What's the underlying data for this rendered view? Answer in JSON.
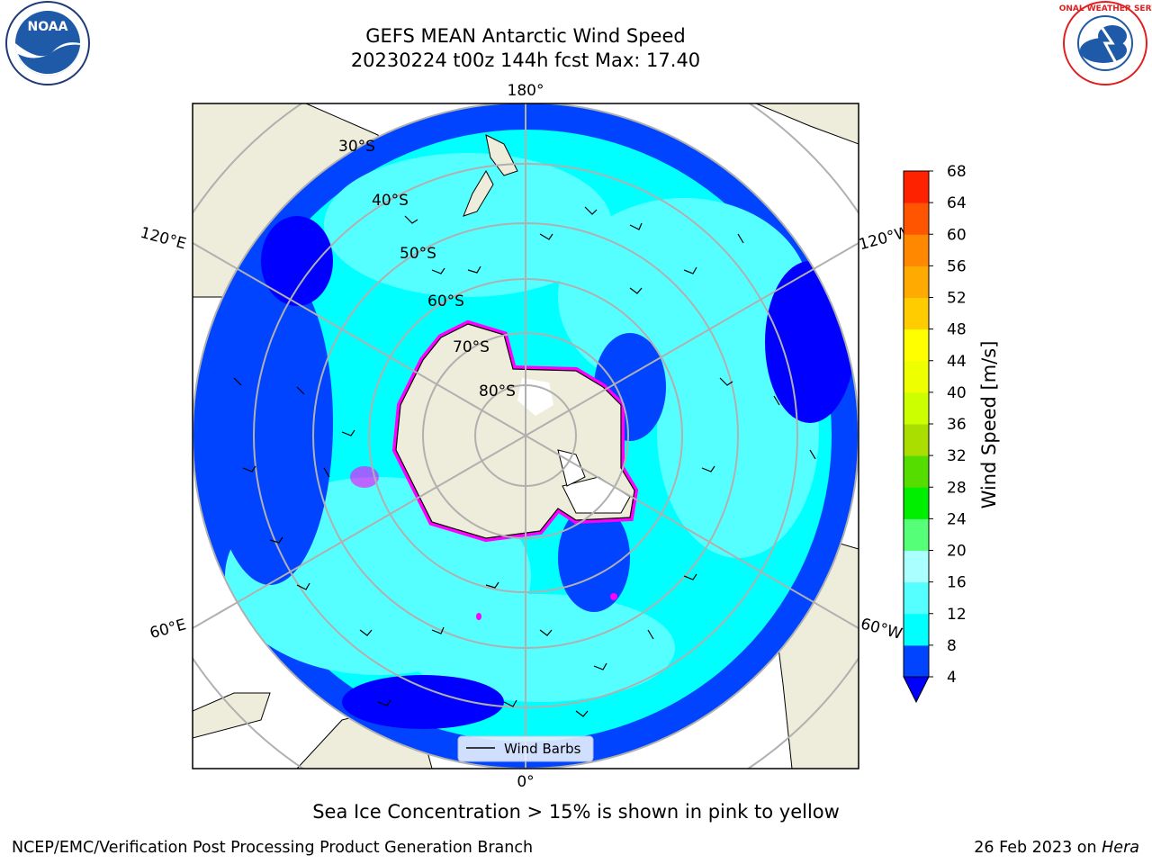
{
  "header": {
    "title_line1": "GEFS MEAN Antarctic Wind Speed",
    "title_line2": "20230224 t00z 144h fcst   Max: 17.40"
  },
  "logos": {
    "left": {
      "text": "NOAA",
      "color": "#1e5aa8"
    },
    "right": {
      "text": "NATIONAL WEATHER SERVICE",
      "color": "#e02020"
    }
  },
  "map": {
    "projection": "south-polar-stereographic",
    "meridian_labels": {
      "top": "180°",
      "bottom": "0°",
      "upper_left": "120°E",
      "upper_right": "120°W",
      "lower_left": "60°E",
      "lower_right": "60°W"
    },
    "latitude_labels": [
      "30°S",
      "40°S",
      "50°S",
      "60°S",
      "70°S",
      "80°S"
    ],
    "legend": {
      "label": "Wind Barbs"
    },
    "colors": {
      "land": "#eeecda",
      "ocean_low": "#0044ff",
      "ocean_mid": "#00ffff",
      "ocean_high": "#55ffff",
      "sea_ice": "#ff00ff",
      "grid": "#b0b0b0"
    }
  },
  "colorbar": {
    "label": "Wind Speed [m/s]",
    "ticks": [
      "4",
      "8",
      "12",
      "16",
      "20",
      "24",
      "28",
      "32",
      "36",
      "40",
      "44",
      "48",
      "52",
      "56",
      "60",
      "64",
      "68"
    ],
    "colors": [
      "#0044ff",
      "#00ffff",
      "#55ffff",
      "#aaffff",
      "#55ff77",
      "#00ee00",
      "#55dd00",
      "#aadd00",
      "#ccff00",
      "#eeff00",
      "#ffff00",
      "#ffcc00",
      "#ffaa00",
      "#ff8800",
      "#ff5500",
      "#ff2200",
      "#ff0000"
    ],
    "extend_color": "#0000ff"
  },
  "footer": {
    "caption": "Sea Ice Concentration > 15% is shown in pink to yellow",
    "left": "NCEP/EMC/Verification Post Processing Product Generation Branch",
    "date_text": "26 Feb 2023 on ",
    "machine": "Hera"
  }
}
